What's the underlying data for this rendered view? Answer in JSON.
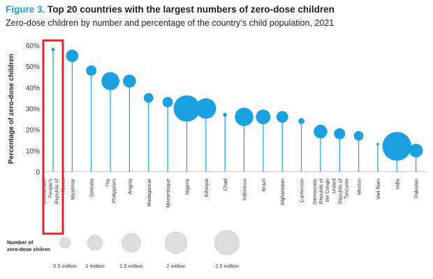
{
  "figure": {
    "label": "Figure 3.",
    "title": "Top 20 countries with the largest numbers of zero-dose children",
    "subtitle": "Zero-dose children by number and percentage of the country’s child population, 2021"
  },
  "chart_data": {
    "type": "scatter",
    "style": "lollipop with bubble size",
    "ylabel": "Percentage of zero-dose children",
    "ylim": [
      0,
      60
    ],
    "yticks": [
      "0",
      "10%",
      "20%",
      "30%",
      "40%",
      "50%",
      "60%"
    ],
    "grid": false,
    "point_color": "#1ba0e0",
    "highlight_color": "#e3262b",
    "highlighted_category": "Democratic People’s Republic of Korea",
    "categories": [
      "Democratic People’s Republic of Korea",
      "Myanmar",
      "Somalia",
      "The Philippines",
      "Angola",
      "Madagascar",
      "Mozambique",
      "Nigeria",
      "Ethiopia",
      "Chad",
      "Indonesia",
      "Brazil",
      "Afghanistan",
      "Cameroon",
      "Democratic Republic of the Congo",
      "United Republic of Tanzania",
      "Mexico",
      "Viet Nam",
      "India",
      "Pakistan"
    ],
    "series": [
      {
        "percent": [
          58,
          55,
          48,
          43,
          43,
          35,
          33,
          30,
          30,
          27,
          26,
          26,
          26,
          24,
          19,
          18,
          17,
          13,
          12,
          10
        ],
        "zero_dose_millions": [
          0.04,
          0.5,
          0.35,
          1.05,
          0.55,
          0.3,
          0.35,
          2.25,
          1.35,
          0.05,
          1.1,
          0.7,
          0.45,
          0.12,
          0.6,
          0.4,
          0.3,
          0.02,
          2.7,
          0.6
        ]
      }
    ],
    "size_legend": {
      "title": "Number of\nzero-dose chilren",
      "values": [
        0.5,
        1,
        1.5,
        2,
        2.5
      ],
      "labels": [
        "0.5 million",
        "1 million",
        "1.5 million",
        "2 million",
        "2.5 million"
      ]
    }
  }
}
